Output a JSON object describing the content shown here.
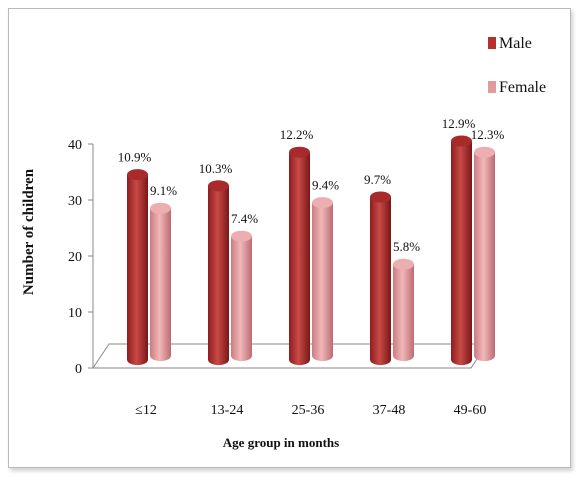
{
  "chart_data": {
    "type": "bar",
    "xlabel": "Age group in months",
    "ylabel": "Number of children",
    "ylim": [
      0,
      40
    ],
    "yticks": [
      0,
      10,
      20,
      30,
      40
    ],
    "categories": [
      "≤12",
      "13-24",
      "25-36",
      "37-48",
      "49-60"
    ],
    "series": [
      {
        "name": "Male",
        "color": "#b5302f",
        "values": [
          34,
          32,
          38,
          30,
          40
        ],
        "labels": [
          "10.9%",
          "10.3%",
          "12.2%",
          "9.7%",
          "12.9%"
        ]
      },
      {
        "name": "Female",
        "color": "#e39a9d",
        "values": [
          28,
          23,
          29,
          18,
          38
        ],
        "labels": [
          "9.1%",
          "7.4%",
          "9.4%",
          "5.8%",
          "12.3%"
        ]
      }
    ],
    "legend": "top-right",
    "grid": false
  }
}
